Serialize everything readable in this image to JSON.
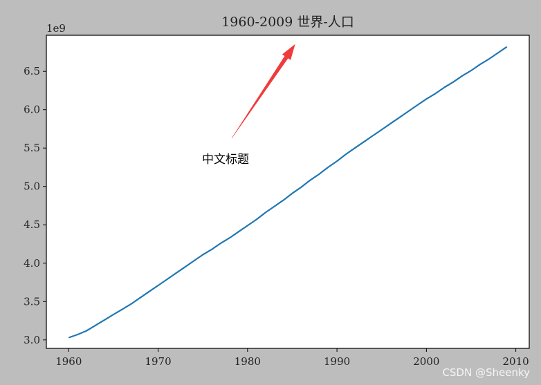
{
  "chart_data": {
    "type": "line",
    "title": "1960-2009 世界-人口",
    "xlabel": "",
    "ylabel": "",
    "offset_label": "1e9",
    "xlim": [
      1957.5,
      2011.5
    ],
    "ylim": [
      2.89,
      6.97
    ],
    "x_ticks": [
      1960,
      1970,
      1980,
      1990,
      2000,
      2010
    ],
    "y_ticks": [
      3.0,
      3.5,
      4.0,
      4.5,
      5.0,
      5.5,
      6.0,
      6.5
    ],
    "y_tick_labels": [
      "3.0",
      "3.5",
      "4.0",
      "4.5",
      "5.0",
      "5.5",
      "6.0",
      "6.5"
    ],
    "grid": false,
    "series": [
      {
        "color": "#1f77b4",
        "x": [
          1960,
          1961,
          1962,
          1963,
          1964,
          1965,
          1966,
          1967,
          1968,
          1969,
          1970,
          1971,
          1972,
          1973,
          1974,
          1975,
          1976,
          1977,
          1978,
          1979,
          1980,
          1981,
          1982,
          1983,
          1984,
          1985,
          1986,
          1987,
          1988,
          1989,
          1990,
          1991,
          1992,
          1993,
          1994,
          1995,
          1996,
          1997,
          1998,
          1999,
          2000,
          2001,
          2002,
          2003,
          2004,
          2005,
          2006,
          2007,
          2008,
          2009
        ],
        "y": [
          3.03,
          3.07,
          3.12,
          3.19,
          3.26,
          3.33,
          3.4,
          3.47,
          3.55,
          3.63,
          3.71,
          3.79,
          3.87,
          3.95,
          4.03,
          4.11,
          4.18,
          4.26,
          4.33,
          4.41,
          4.49,
          4.57,
          4.66,
          4.74,
          4.82,
          4.91,
          4.99,
          5.08,
          5.16,
          5.25,
          5.33,
          5.42,
          5.5,
          5.58,
          5.66,
          5.74,
          5.82,
          5.9,
          5.98,
          6.06,
          6.14,
          6.21,
          6.29,
          6.36,
          6.44,
          6.51,
          6.59,
          6.66,
          6.74,
          6.82
        ]
      }
    ],
    "annotation": {
      "text": "中文标题",
      "xy": [
        1985.3,
        6.85
      ],
      "xytext": [
        1974.5,
        5.3
      ],
      "arrow_color": "#ef3b3b"
    }
  },
  "watermark": "CSDN @Sheenky"
}
